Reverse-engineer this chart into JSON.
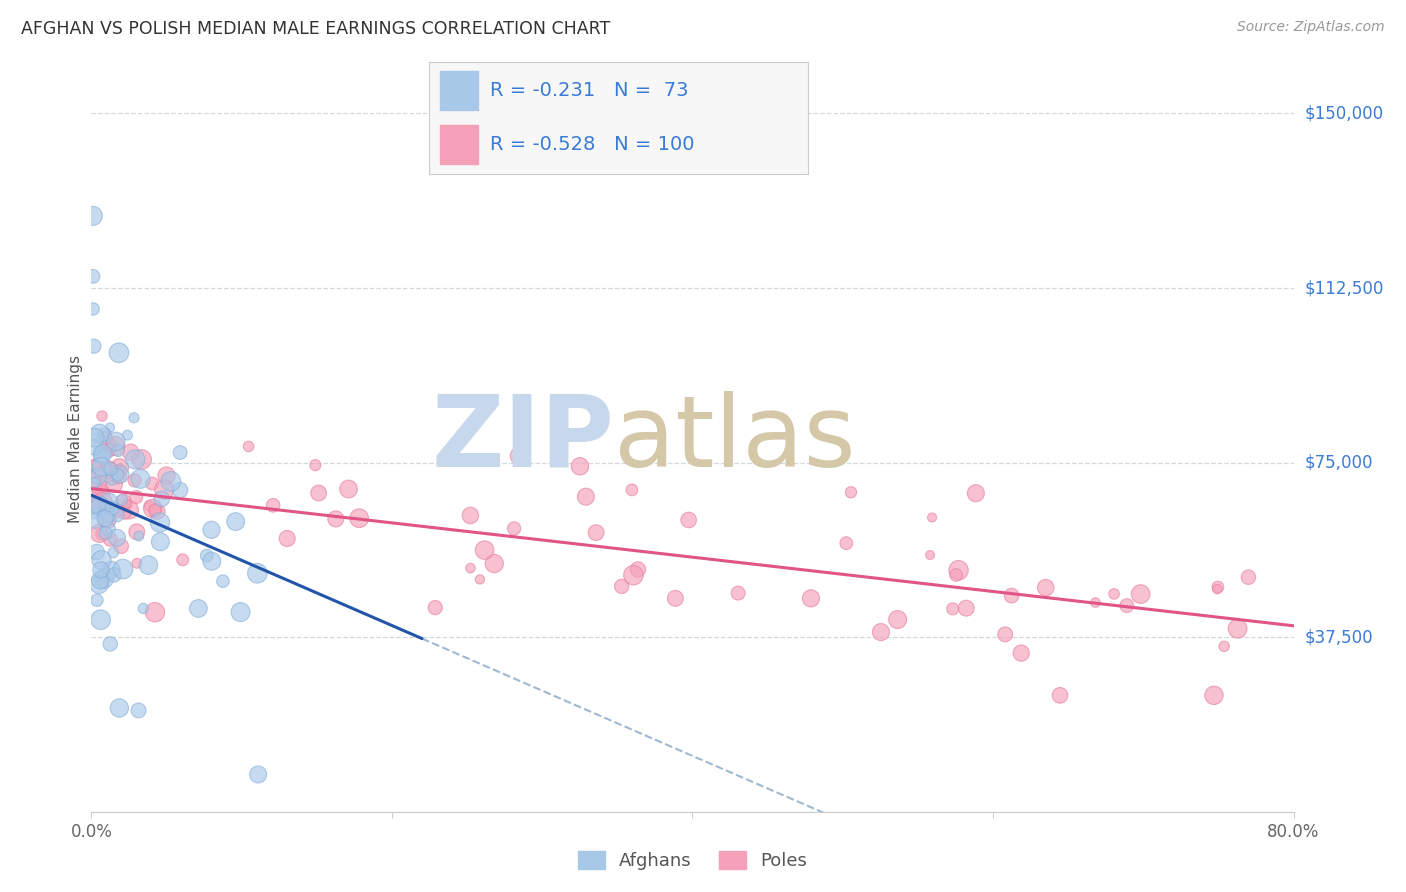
{
  "title": "AFGHAN VS POLISH MEDIAN MALE EARNINGS CORRELATION CHART",
  "source": "Source: ZipAtlas.com",
  "ylabel": "Median Male Earnings",
  "xlim": [
    0.0,
    0.8
  ],
  "ylim": [
    0,
    160000
  ],
  "right_yticks": [
    37500,
    75000,
    112500,
    150000
  ],
  "right_yticklabels": [
    "$37,500",
    "$75,000",
    "$112,500",
    "$150,000"
  ],
  "afghan_color": "#a8c8e8",
  "pole_color": "#f4a0b8",
  "afghan_edge_color": "#88b0d8",
  "pole_edge_color": "#e880a0",
  "afghan_line_color": "#2255aa",
  "pole_line_color": "#e05585",
  "dashed_line_color": "#a0b8d0",
  "watermark_zip_color": "#c8d8ec",
  "watermark_atlas_color": "#d4c8a8",
  "legend_text_color": "#3a7bd5",
  "bottom_legend_afghans": "Afghans",
  "bottom_legend_poles": "Poles",
  "grid_color": "#d0d8e0",
  "bg_color": "#ffffff"
}
